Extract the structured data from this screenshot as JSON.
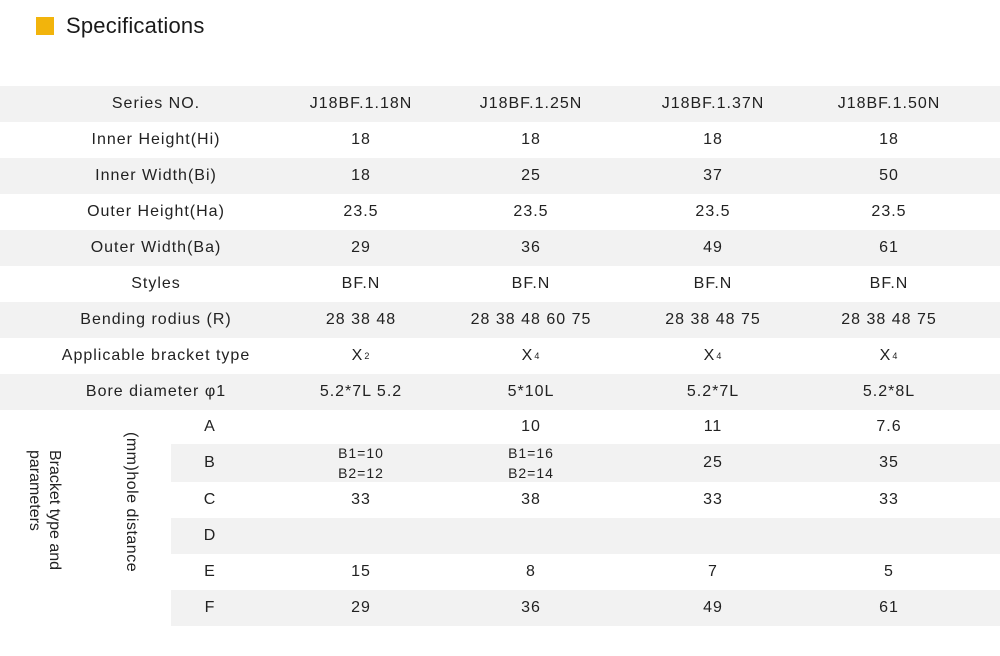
{
  "header": {
    "title": "Specifications"
  },
  "columns": [
    "J18BF.1.18N",
    "J18BF.1.25N",
    "J18BF.1.37N",
    "J18BF.1.50N"
  ],
  "rows": [
    {
      "label": "Series NO.",
      "values": [
        "J18BF.1.18N",
        "J18BF.1.25N",
        "J18BF.1.37N",
        "J18BF.1.50N"
      ]
    },
    {
      "label": "Inner Height(Hi)",
      "values": [
        "18",
        "18",
        "18",
        "18"
      ]
    },
    {
      "label": "Inner  Width(Bi)",
      "values": [
        "18",
        "25",
        "37",
        "50"
      ]
    },
    {
      "label": "Outer Height(Ha)",
      "values": [
        "23.5",
        "23.5",
        "23.5",
        "23.5"
      ]
    },
    {
      "label": "Outer Width(Ba)",
      "values": [
        "29",
        "36",
        "49",
        "61"
      ]
    },
    {
      "label": "Styles",
      "values": [
        "BF.N",
        "BF.N",
        "BF.N",
        "BF.N"
      ]
    },
    {
      "label": "Bending rodius (R)",
      "values": [
        "28 38 48",
        "28 38 48 60 75",
        "28 38 48 75",
        "28 38 48 75"
      ]
    },
    {
      "label": "Applicable bracket type",
      "values": [
        "X",
        "X",
        "X",
        "X"
      ],
      "subscripts": [
        "2",
        "4",
        "4",
        "4"
      ]
    },
    {
      "label": "Bore diameter  φ1",
      "values": [
        "5.2*7L  5.2",
        "5*10L",
        "5.2*7L",
        "5.2*8L"
      ]
    }
  ],
  "bracket": {
    "group_label": "Bracket type and parameters",
    "unit_label": "(mm)hole distance",
    "rows": [
      {
        "label": "A",
        "values": [
          "",
          "10",
          "11",
          "7.6"
        ]
      },
      {
        "label": "B",
        "values": [
          "B1=10",
          "B1=16",
          "25",
          "35"
        ],
        "values2": [
          "B2=12",
          "B2=14",
          "",
          ""
        ]
      },
      {
        "label": "C",
        "values": [
          "33",
          "38",
          "33",
          "33"
        ]
      },
      {
        "label": "D",
        "values": [
          "",
          "",
          "",
          ""
        ]
      },
      {
        "label": "E",
        "values": [
          "15",
          "8",
          "7",
          "5"
        ]
      },
      {
        "label": "F",
        "values": [
          "29",
          "36",
          "49",
          "61"
        ]
      }
    ]
  }
}
